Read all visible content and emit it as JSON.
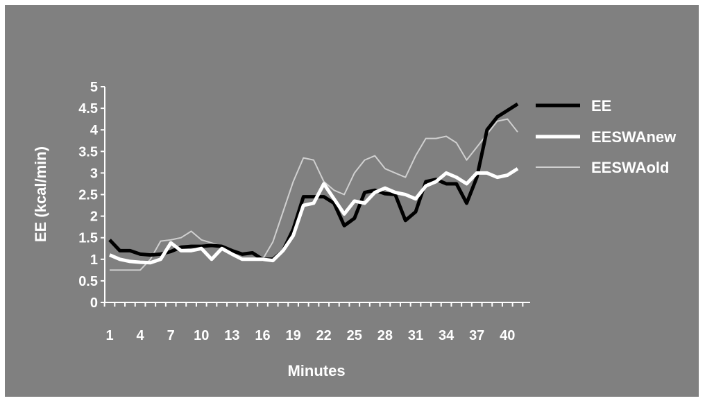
{
  "chart_data": {
    "type": "line",
    "xlabel": "Minutes",
    "ylabel": "EE (kcal/min)",
    "ylim": [
      0,
      5
    ],
    "yticks": [
      "0",
      "0.5",
      "1",
      "1.5",
      "2",
      "2.5",
      "3",
      "3.5",
      "4",
      "4.5",
      "5"
    ],
    "x": [
      1,
      2,
      3,
      4,
      5,
      6,
      7,
      8,
      9,
      10,
      11,
      12,
      13,
      14,
      15,
      16,
      17,
      18,
      19,
      20,
      21,
      22,
      23,
      24,
      25,
      26,
      27,
      28,
      29,
      30,
      31,
      32,
      33,
      34,
      35,
      36,
      37,
      38,
      39,
      40,
      41
    ],
    "xticks": [
      "1",
      "4",
      "7",
      "10",
      "13",
      "16",
      "19",
      "22",
      "25",
      "28",
      "31",
      "34",
      "37",
      "40"
    ],
    "grid": false,
    "legend_position": "right",
    "series": [
      {
        "name": "EE",
        "color": "#000000",
        "values": [
          1.45,
          1.2,
          1.2,
          1.12,
          1.1,
          1.12,
          1.18,
          1.28,
          1.3,
          1.3,
          1.32,
          1.3,
          1.2,
          1.12,
          1.15,
          1.0,
          1.0,
          1.2,
          1.7,
          2.45,
          2.45,
          2.45,
          2.3,
          1.78,
          1.95,
          2.55,
          2.6,
          2.52,
          2.5,
          1.9,
          2.1,
          2.8,
          2.85,
          2.75,
          2.75,
          2.3,
          2.9,
          4.0,
          4.3,
          4.45,
          4.6
        ]
      },
      {
        "name": "EESWAnew",
        "color": "#ffffff",
        "values": [
          1.1,
          1.0,
          0.95,
          0.93,
          0.92,
          1.0,
          1.38,
          1.2,
          1.2,
          1.25,
          1.0,
          1.25,
          1.12,
          1.0,
          1.0,
          1.0,
          0.97,
          1.2,
          1.55,
          2.25,
          2.3,
          2.75,
          2.4,
          2.05,
          2.35,
          2.3,
          2.55,
          2.65,
          2.55,
          2.5,
          2.4,
          2.7,
          2.8,
          3.0,
          2.9,
          2.75,
          3.0,
          3.0,
          2.9,
          2.95,
          3.1
        ]
      },
      {
        "name": "EESWAold",
        "color": "#d0d0d0",
        "values": [
          0.75,
          0.75,
          0.75,
          0.75,
          1.0,
          1.42,
          1.45,
          1.5,
          1.65,
          1.45,
          1.38,
          1.3,
          1.1,
          1.0,
          1.0,
          1.0,
          1.4,
          2.1,
          2.8,
          3.35,
          3.3,
          2.8,
          2.6,
          2.5,
          3.0,
          3.3,
          3.4,
          3.1,
          3.0,
          2.9,
          3.4,
          3.8,
          3.8,
          3.85,
          3.7,
          3.3,
          3.6,
          3.9,
          4.2,
          4.25,
          3.95
        ]
      }
    ]
  }
}
